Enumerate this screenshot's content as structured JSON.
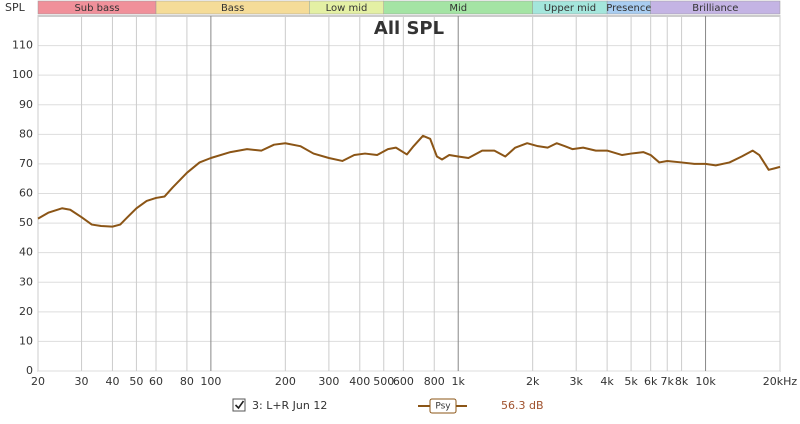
{
  "chart_data": {
    "type": "line",
    "title": "All SPL",
    "y_label": "SPL",
    "bands": [
      {
        "name": "Sub bass",
        "from": 20,
        "to": 60,
        "color": "#f0909a"
      },
      {
        "name": "Bass",
        "from": 60,
        "to": 250,
        "color": "#f5dc98"
      },
      {
        "name": "Low mid",
        "from": 250,
        "to": 500,
        "color": "#e4f0a4"
      },
      {
        "name": "Mid",
        "from": 500,
        "to": 2000,
        "color": "#a4e4a4"
      },
      {
        "name": "Upper mid",
        "from": 2000,
        "to": 4000,
        "color": "#a4e6dc"
      },
      {
        "name": "Presence",
        "from": 4000,
        "to": 6000,
        "color": "#a8ccf0"
      },
      {
        "name": "Brilliance",
        "from": 6000,
        "to": 20000,
        "color": "#c4b4e4"
      }
    ],
    "x_scale": "log",
    "xlim": [
      20,
      20000
    ],
    "xticks": [
      20,
      30,
      40,
      50,
      60,
      80,
      100,
      200,
      300,
      400,
      500,
      600,
      800,
      {
        "value": 1000,
        "label": "1k"
      },
      {
        "value": 2000,
        "label": "2k"
      },
      {
        "value": 3000,
        "label": "3k"
      },
      {
        "value": 4000,
        "label": "4k"
      },
      {
        "value": 5000,
        "label": "5k"
      },
      {
        "value": 6000,
        "label": "6k"
      },
      {
        "value": 7000,
        "label": "7k"
      },
      {
        "value": 8000,
        "label": "8k"
      },
      {
        "value": 10000,
        "label": "10k"
      },
      {
        "value": 20000,
        "label": "20kHz"
      }
    ],
    "ylim": [
      0,
      120
    ],
    "yticks": [
      0,
      10,
      20,
      30,
      40,
      50,
      60,
      70,
      80,
      90,
      100,
      110
    ],
    "grid": true,
    "x": [
      20,
      22,
      25,
      27,
      30,
      33,
      36,
      40,
      43,
      46,
      50,
      55,
      60,
      65,
      70,
      80,
      90,
      100,
      120,
      140,
      160,
      180,
      200,
      230,
      260,
      300,
      340,
      380,
      420,
      470,
      520,
      560,
      620,
      660,
      720,
      770,
      820,
      860,
      920,
      1000,
      1100,
      1250,
      1400,
      1550,
      1700,
      1900,
      2100,
      2300,
      2500,
      2700,
      2900,
      3200,
      3600,
      4000,
      4600,
      5000,
      5600,
      6000,
      6500,
      7000,
      8000,
      9000,
      10000,
      11000,
      12500,
      14000,
      15500,
      16500,
      18000,
      19000,
      20000
    ],
    "series": [
      {
        "name": "3: L+R Jun 12",
        "color": "#8b5516",
        "smoothing": "Psy",
        "level": "56.3 dB",
        "values": [
          51.5,
          53.5,
          55,
          54.5,
          52,
          49.5,
          49,
          48.8,
          49.5,
          52,
          55,
          57.5,
          58.5,
          59,
          62,
          67,
          70.5,
          72,
          74,
          75,
          74.5,
          76.5,
          77,
          76,
          73.5,
          72,
          71,
          73,
          73.5,
          73,
          75,
          75.5,
          73.2,
          76,
          79.5,
          78.5,
          72.5,
          71.5,
          73,
          72.5,
          72,
          74.5,
          74.5,
          72.5,
          75.5,
          77,
          76,
          75.5,
          77,
          76,
          75,
          75.5,
          74.5,
          74.5,
          73,
          73.5,
          74,
          73,
          70.5,
          71,
          70.5,
          70,
          70,
          69.5,
          70.5,
          72.5,
          74.5,
          73,
          68,
          68.5,
          69
        ]
      }
    ]
  }
}
